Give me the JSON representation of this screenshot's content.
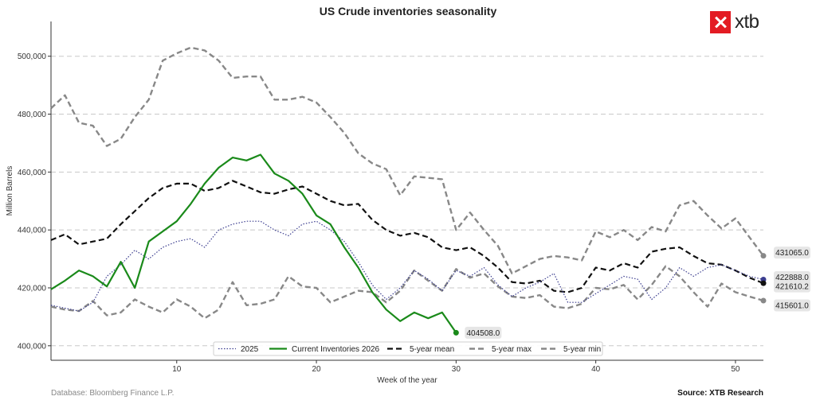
{
  "chart_data": {
    "type": "line",
    "title": "US Crude inventories seasonality",
    "xlabel": "Week of the year",
    "ylabel": "Million Barrels",
    "xlim": [
      1,
      52
    ],
    "ylim": [
      395000,
      512000
    ],
    "xticks": [
      10,
      20,
      30,
      40,
      50
    ],
    "yticks": [
      400000,
      420000,
      440000,
      460000,
      480000,
      500000
    ],
    "ytick_labels": [
      "400,000",
      "420,000",
      "440,000",
      "460,000",
      "480,000",
      "500,000"
    ],
    "grid": "horizontal-dashed",
    "legend_position": "bottom-center",
    "series": [
      {
        "name": "2025",
        "color": "#3b3d8f",
        "style": "dotted",
        "x": [
          1,
          2,
          3,
          4,
          5,
          6,
          7,
          8,
          9,
          10,
          11,
          12,
          13,
          14,
          15,
          16,
          17,
          18,
          19,
          20,
          21,
          22,
          23,
          24,
          25,
          26,
          27,
          28,
          29,
          30,
          31,
          32,
          33,
          34,
          35,
          36,
          37,
          38,
          39,
          40,
          41,
          42,
          43,
          44,
          45,
          46,
          47,
          48,
          49,
          50,
          51,
          52
        ],
        "values": [
          414000,
          413000,
          412000,
          415000,
          424000,
          428000,
          433000,
          430000,
          434000,
          436000,
          437000,
          434000,
          440000,
          442000,
          443000,
          443000,
          440000,
          438000,
          442000,
          443000,
          440000,
          436000,
          429000,
          421000,
          416000,
          420000,
          426000,
          423000,
          419000,
          426000,
          424000,
          427000,
          421000,
          417000,
          420000,
          422000,
          425000,
          415000,
          415000,
          418000,
          421000,
          424000,
          423000,
          416000,
          420000,
          427000,
          424000,
          427000,
          428000,
          426000,
          424000,
          422888
        ]
      },
      {
        "name": "Current Inventories 2026",
        "color": "#1a8a1a",
        "style": "solid",
        "x": [
          1,
          2,
          3,
          4,
          5,
          6,
          7,
          8,
          9,
          10,
          11,
          12,
          13,
          14,
          15,
          16,
          17,
          18,
          19,
          20,
          21,
          22,
          23,
          24,
          25,
          26,
          27,
          28,
          29,
          30
        ],
        "values": [
          419500,
          422500,
          426000,
          424000,
          420500,
          429000,
          420000,
          436000,
          439500,
          443000,
          449000,
          456000,
          461500,
          465000,
          464000,
          466000,
          459500,
          457000,
          452500,
          445000,
          442000,
          434000,
          427000,
          418500,
          412500,
          408500,
          411500,
          409500,
          411500,
          404508
        ]
      },
      {
        "name": "5-year mean",
        "color": "#111111",
        "style": "dashed",
        "x": [
          1,
          2,
          3,
          4,
          5,
          6,
          7,
          8,
          9,
          10,
          11,
          12,
          13,
          14,
          15,
          16,
          17,
          18,
          19,
          20,
          21,
          22,
          23,
          24,
          25,
          26,
          27,
          28,
          29,
          30,
          31,
          32,
          33,
          34,
          35,
          36,
          37,
          38,
          39,
          40,
          41,
          42,
          43,
          44,
          45,
          46,
          47,
          48,
          49,
          50,
          51,
          52
        ],
        "values": [
          436500,
          438500,
          435000,
          436000,
          437000,
          442000,
          446500,
          451000,
          454500,
          456000,
          456000,
          453500,
          454500,
          457000,
          455000,
          453000,
          452500,
          454000,
          455000,
          452500,
          450000,
          448500,
          449000,
          443500,
          440000,
          438000,
          439000,
          437500,
          434000,
          433000,
          434000,
          431000,
          427000,
          422000,
          421500,
          422500,
          419000,
          418500,
          420000,
          427000,
          426000,
          428500,
          427000,
          432500,
          433500,
          434000,
          431000,
          428500,
          428000,
          426000,
          423500,
          421610.2
        ]
      },
      {
        "name": "5-year max",
        "color": "#888888",
        "style": "dashed",
        "x": [
          1,
          2,
          3,
          4,
          5,
          6,
          7,
          8,
          9,
          10,
          11,
          12,
          13,
          14,
          15,
          16,
          17,
          18,
          19,
          20,
          21,
          22,
          23,
          24,
          25,
          26,
          27,
          28,
          29,
          30,
          31,
          32,
          33,
          34,
          35,
          36,
          37,
          38,
          39,
          40,
          41,
          42,
          43,
          44,
          45,
          46,
          47,
          48,
          49,
          50,
          51,
          52
        ],
        "values": [
          482000,
          486500,
          477000,
          476000,
          469000,
          471500,
          479000,
          485000,
          498500,
          501000,
          503000,
          502000,
          498500,
          492500,
          493000,
          493000,
          485000,
          485000,
          486000,
          484000,
          479000,
          473500,
          466500,
          463000,
          461000,
          452000,
          458500,
          458000,
          457500,
          440000,
          446000,
          440000,
          434500,
          425000,
          427500,
          430000,
          431000,
          430500,
          429500,
          439500,
          437500,
          440000,
          436500,
          441000,
          439500,
          448500,
          450000,
          445000,
          440500,
          444000,
          437500,
          431065.0
        ]
      },
      {
        "name": "5-year min",
        "color": "#888888",
        "style": "dashed",
        "x": [
          1,
          2,
          3,
          4,
          5,
          6,
          7,
          8,
          9,
          10,
          11,
          12,
          13,
          14,
          15,
          16,
          17,
          18,
          19,
          20,
          21,
          22,
          23,
          24,
          25,
          26,
          27,
          28,
          29,
          30,
          31,
          32,
          33,
          34,
          35,
          36,
          37,
          38,
          39,
          40,
          41,
          42,
          43,
          44,
          45,
          46,
          47,
          48,
          49,
          50,
          51,
          52
        ],
        "values": [
          413500,
          412500,
          412000,
          415500,
          410500,
          411500,
          416000,
          413500,
          411500,
          416000,
          413500,
          409500,
          412500,
          422000,
          414000,
          414500,
          416000,
          424000,
          420500,
          420000,
          415000,
          417000,
          419000,
          418500,
          415000,
          419000,
          426000,
          422500,
          419000,
          426500,
          423500,
          425000,
          420500,
          417000,
          416500,
          417500,
          413500,
          413000,
          414500,
          420000,
          419500,
          421000,
          416000,
          421000,
          427500,
          424000,
          418500,
          413500,
          421500,
          418500,
          417000,
          415601.0
        ]
      }
    ],
    "end_labels": [
      {
        "series": "Current Inventories 2026",
        "text": "404508.0",
        "x": 30,
        "value": 404508
      },
      {
        "series": "5-year max",
        "text": "431065.0",
        "x": 52,
        "value": 431065
      },
      {
        "series": "2025",
        "text": "422888.0",
        "x": 52,
        "value": 422888
      },
      {
        "series": "5-year mean",
        "text": "421610.2",
        "x": 52,
        "value": 421610.2
      },
      {
        "series": "5-year min",
        "text": "415601.0",
        "x": 52,
        "value": 415601
      }
    ]
  },
  "footer": {
    "source_left": "Database: Bloomberg Finance L.P.",
    "source_right": "Source: XTB Research"
  },
  "logo": {
    "text": "xtb",
    "color": "#e31b23",
    "icon": "xtb-x-icon"
  }
}
